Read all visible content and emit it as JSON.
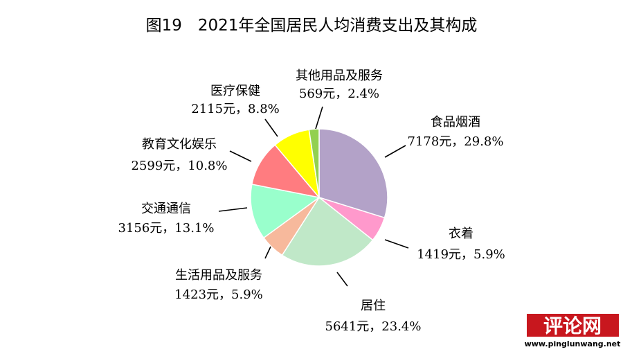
{
  "title": "图19　2021年全国居民人均消费支出及其构成",
  "chart_data": {
    "type": "pie",
    "title": "图19　2021年全国居民人均消费支出及其构成",
    "slices": [
      {
        "name": "食品烟酒",
        "value": 7178,
        "percent": 29.8,
        "value_label": "7178元，29.8%",
        "color": "#b3a2c8"
      },
      {
        "name": "衣着",
        "value": 1419,
        "percent": 5.9,
        "value_label": "1419元，5.9%",
        "color": "#ff99cc"
      },
      {
        "name": "居住",
        "value": 5641,
        "percent": 23.4,
        "value_label": "5641元，23.4%",
        "color": "#c0e8c8"
      },
      {
        "name": "生活用品及服务",
        "value": 1423,
        "percent": 5.9,
        "value_label": "1423元，5.9%",
        "color": "#f7b99c"
      },
      {
        "name": "交通通信",
        "value": 3156,
        "percent": 13.1,
        "value_label": "3156元，13.1%",
        "color": "#99ffcc"
      },
      {
        "name": "教育文化娱乐",
        "value": 2599,
        "percent": 10.8,
        "value_label": "2599元，10.8%",
        "color": "#ff7c80"
      },
      {
        "name": "医疗保健",
        "value": 2115,
        "percent": 8.8,
        "value_label": "2115元，8.8%",
        "color": "#ffff00"
      },
      {
        "name": "其他用品及服务",
        "value": 569,
        "percent": 2.4,
        "value_label": "569元，2.4%",
        "color": "#92d050"
      }
    ],
    "start_angle": "12 o'clock",
    "direction": "clockwise",
    "legend": "none"
  },
  "watermark": {
    "text": "评论网",
    "url": "www.pinglunwang.net"
  }
}
